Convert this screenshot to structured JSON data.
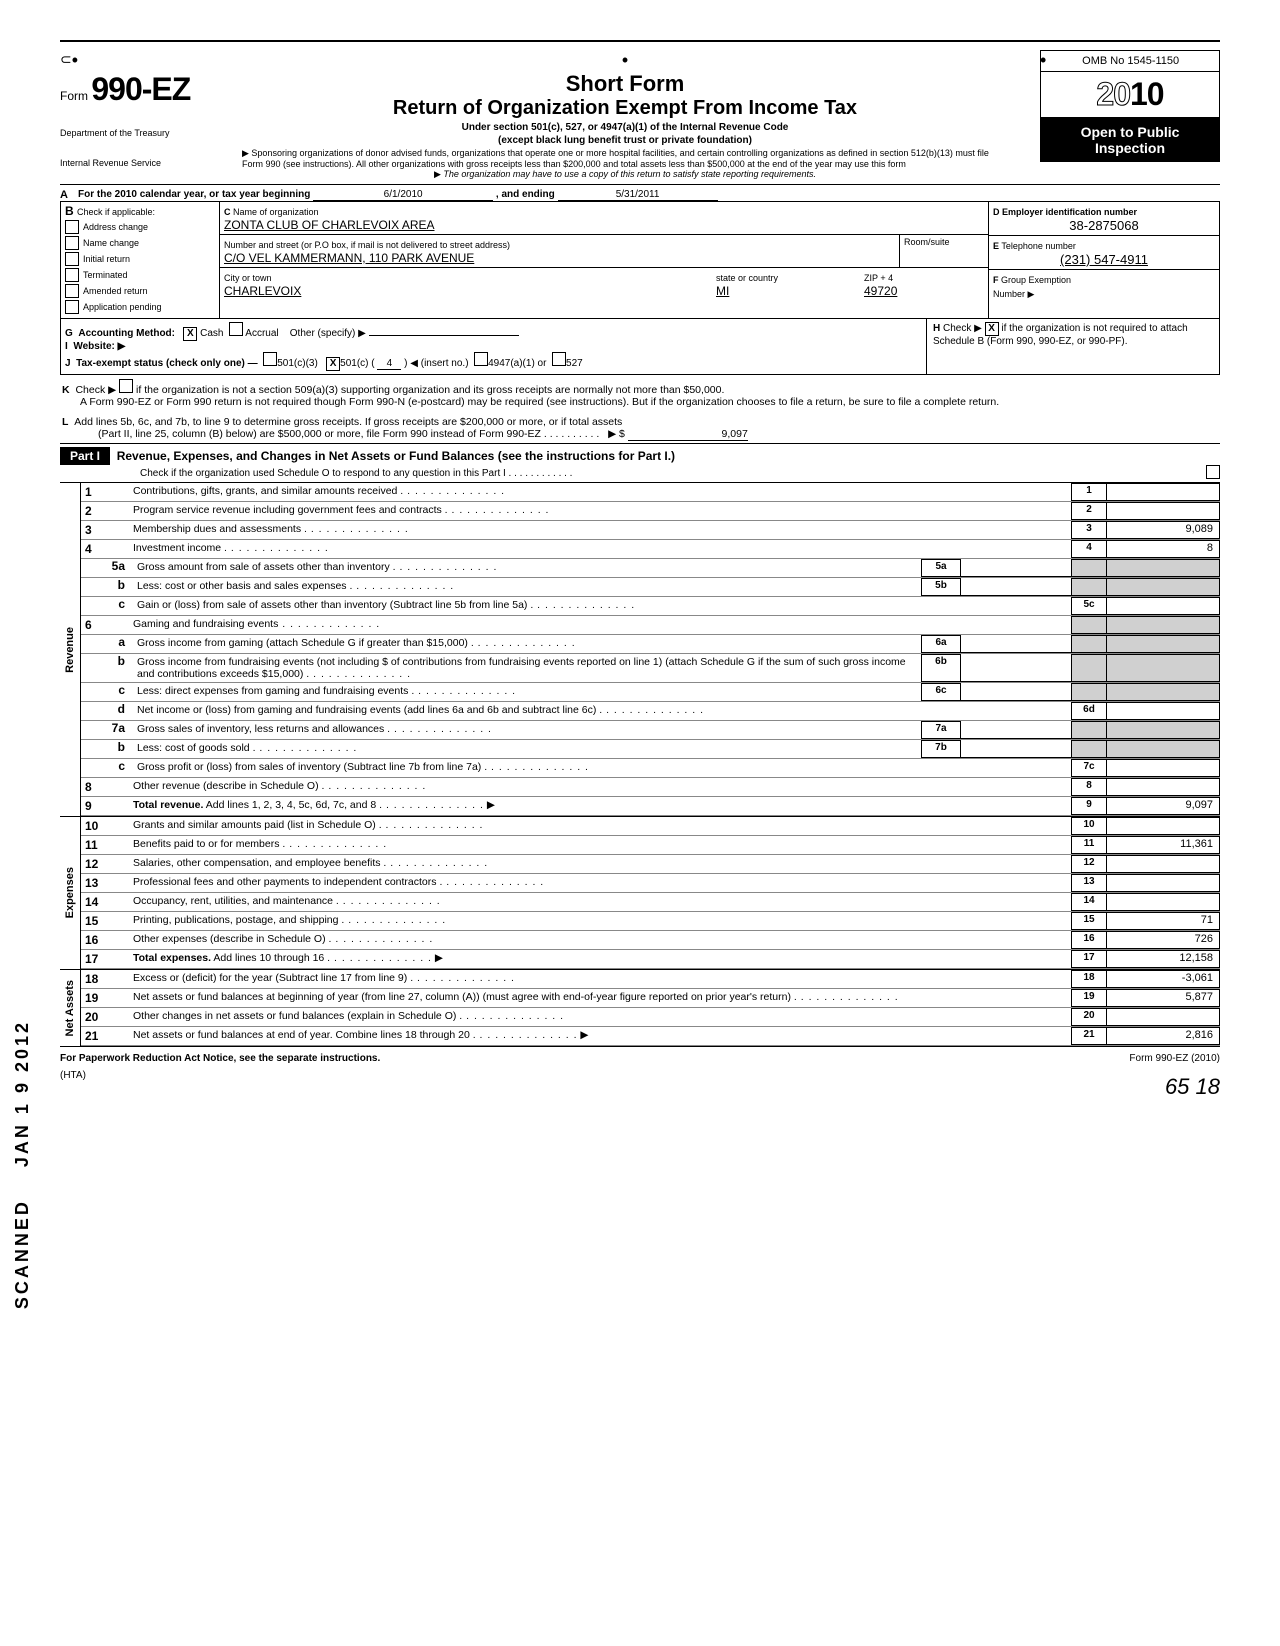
{
  "form": {
    "number": "990-EZ",
    "prefix": "Form",
    "title1": "Short Form",
    "title2": "Return of Organization Exempt From Income Tax",
    "sub1": "Under section 501(c), 527, or 4947(a)(1) of the Internal Revenue Code",
    "sub2": "(except black lung benefit trust or private foundation)",
    "note1": "Sponsoring organizations of donor advised funds, organizations that operate one or more hospital facilities, and certain controlling organizations as defined in section 512(b)(13) must file Form 990 (see instructions). All other organizations with gross receipts less than $200,000 and total assets less than $500,000 at the end of the year may use this form",
    "note2": "The organization may have to use a copy of this return to satisfy state reporting requirements.",
    "omb": "OMB No  1545-1150",
    "year_prefix": "20",
    "year_suffix": "10",
    "open": "Open to Public Inspection",
    "dept": "Department of the Treasury",
    "irs": "Internal Revenue Service"
  },
  "period": {
    "label_a": "For the 2010 calendar year, or tax year beginning",
    "begin": "6/1/2010",
    "mid": ", and ending",
    "end": "5/31/2011"
  },
  "sectionB": {
    "label": "Check if applicable:",
    "items": [
      "Address change",
      "Name change",
      "Initial return",
      "Terminated",
      "Amended return",
      "Application pending"
    ]
  },
  "sectionC": {
    "name_label": "Name of organization",
    "name": "ZONTA CLUB OF CHARLEVOIX AREA",
    "street_label": "Number and street (or P.O  box, if mail is not delivered to street address)",
    "street": "C/O VEL KAMMERMANN,  110 PARK AVENUE",
    "room_label": "Room/suite",
    "city_label": "City or town",
    "city": "CHARLEVOIX",
    "state_label": "state or country",
    "state": "MI",
    "zip_label": "ZIP + 4",
    "zip": "49720"
  },
  "sectionD": {
    "label": "Employer identification number",
    "value": "38-2875068"
  },
  "sectionE": {
    "label": "Telephone number",
    "value": "(231) 547-4911"
  },
  "sectionF": {
    "label": "Group Exemption",
    "label2": "Number ▶"
  },
  "rowG": {
    "label": "Accounting Method:",
    "cash": "Cash",
    "accrual": "Accrual",
    "other": "Other (specify) ▶",
    "cash_checked": "X"
  },
  "rowH": {
    "label": "Check ▶",
    "checked": "X",
    "text": "if the organization is not required to attach Schedule B (Form 990, 990-EZ, or 990-PF)."
  },
  "rowI": {
    "label": "Website: ▶"
  },
  "rowJ": {
    "label": "Tax-exempt status (check only one) —",
    "c3": "501(c)(3)",
    "c": "501(c) (",
    "c_num": "4",
    "c_tail": ") ◀ (insert no.)",
    "c_checked": "X",
    "a1": "4947(a)(1) or",
    "s527": "527"
  },
  "rowK": {
    "label": "Check ▶",
    "text1": "if the organization is not a section 509(a)(3) supporting organization and its gross receipts are normally not more than $50,000.",
    "text2": "A Form 990-EZ or Form 990 return is not required though Form 990-N (e-postcard) may be required (see instructions). But if the organization chooses to file a return, be sure to file a complete return."
  },
  "rowL": {
    "text1": "Add lines 5b, 6c, and 7b, to line 9 to determine gross receipts. If gross receipts are $200,000 or more, or if total assets",
    "text2": "(Part II, line  25, column (B) below) are $500,000 or more, file Form 990 instead of Form 990-EZ  .  .  .  .  .  .  .  .  .  .",
    "arrow": "▶ $",
    "value": "9,097"
  },
  "partI": {
    "header": "Part I",
    "title": "Revenue, Expenses, and Changes in Net Assets or Fund Balances (see the instructions for Part I.)",
    "subtitle": "Check if the organization used Schedule O to respond to any question in this Part I  .  .  .  .  .  .  .  .  .  .  .  ."
  },
  "sideLabels": {
    "revenue": "Revenue",
    "expenses": "Expenses",
    "netassets": "Net Assets"
  },
  "lines": {
    "l1": {
      "n": "1",
      "label": "Contributions, gifts, grants, and similar amounts received .",
      "box": "1",
      "val": ""
    },
    "l2": {
      "n": "2",
      "label": "Program service revenue including government fees and contracts .",
      "box": "2",
      "val": ""
    },
    "l3": {
      "n": "3",
      "label": "Membership dues and assessments .",
      "box": "3",
      "val": "9,089"
    },
    "l4": {
      "n": "4",
      "label": "Investment income .",
      "box": "4",
      "val": "8"
    },
    "l5a": {
      "n": "5a",
      "label": "Gross amount from sale of assets other than inventory .",
      "mid": "5a"
    },
    "l5b": {
      "n": "b",
      "label": "Less: cost or other basis and sales expenses .",
      "mid": "5b"
    },
    "l5c": {
      "n": "c",
      "label": "Gain or (loss) from sale of assets other than inventory (Subtract line 5b from line 5a) .",
      "box": "5c",
      "val": ""
    },
    "l6": {
      "n": "6",
      "label": "Gaming and fundraising events"
    },
    "l6a": {
      "n": "a",
      "label": "Gross income from gaming (attach Schedule G if greater than $15,000) .",
      "mid": "6a"
    },
    "l6b": {
      "n": "b",
      "label": "Gross income from fundraising events (not including $                of contributions from fundraising events reported on line 1) (attach Schedule G if the sum of such gross income and contributions exceeds $15,000) .",
      "mid": "6b"
    },
    "l6c": {
      "n": "c",
      "label": "Less: direct expenses from gaming and fundraising events .",
      "mid": "6c"
    },
    "l6d": {
      "n": "d",
      "label": "Net income or (loss) from gaming and fundraising events (add lines 6a and 6b and subtract line 6c)  .",
      "box": "6d",
      "val": ""
    },
    "l7a": {
      "n": "7a",
      "label": "Gross sales of inventory, less returns and allowances .",
      "mid": "7a"
    },
    "l7b": {
      "n": "b",
      "label": "Less: cost of goods sold .",
      "mid": "7b"
    },
    "l7c": {
      "n": "c",
      "label": "Gross profit or (loss) from sales of inventory (Subtract line 7b from line 7a) .",
      "box": "7c",
      "val": ""
    },
    "l8": {
      "n": "8",
      "label": "Other revenue (describe in Schedule O) .",
      "box": "8",
      "val": ""
    },
    "l9": {
      "n": "9",
      "label": "Total revenue. Add lines 1, 2, 3, 4, 5c, 6d, 7c, and 8 .",
      "box": "9",
      "val": "9,097",
      "bold": true,
      "arrow": true
    },
    "l10": {
      "n": "10",
      "label": "Grants and similar amounts paid (list in Schedule O) .",
      "box": "10",
      "val": ""
    },
    "l11": {
      "n": "11",
      "label": "Benefits paid to or for members .",
      "box": "11",
      "val": "11,361"
    },
    "l12": {
      "n": "12",
      "label": "Salaries, other compensation, and employee benefits .",
      "box": "12",
      "val": ""
    },
    "l13": {
      "n": "13",
      "label": "Professional fees and other payments to independent contractors .",
      "box": "13",
      "val": ""
    },
    "l14": {
      "n": "14",
      "label": "Occupancy, rent, utilities, and maintenance .",
      "box": "14",
      "val": ""
    },
    "l15": {
      "n": "15",
      "label": "Printing, publications, postage, and shipping .",
      "box": "15",
      "val": "71"
    },
    "l16": {
      "n": "16",
      "label": "Other expenses (describe in Schedule O) .",
      "box": "16",
      "val": "726"
    },
    "l17": {
      "n": "17",
      "label": "Total expenses. Add lines 10 through 16 .",
      "box": "17",
      "val": "12,158",
      "bold": true,
      "arrow": true
    },
    "l18": {
      "n": "18",
      "label": "Excess or (deficit) for the year (Subtract line 17 from line 9) .",
      "box": "18",
      "val": "-3,061"
    },
    "l19": {
      "n": "19",
      "label": "Net assets or fund balances at beginning of year (from line 27, column (A)) (must agree with end-of-year figure reported on prior year's return) .",
      "box": "19",
      "val": "5,877"
    },
    "l20": {
      "n": "20",
      "label": "Other changes in net assets or fund balances (explain in Schedule O) .",
      "box": "20",
      "val": ""
    },
    "l21": {
      "n": "21",
      "label": "Net assets or fund balances at end of year. Combine lines 18 through 20  .",
      "box": "21",
      "val": "2,816",
      "arrow": true
    }
  },
  "footer": {
    "left": "For Paperwork Reduction Act Notice, see the separate instructions.",
    "hta": "(HTA)",
    "right": "Form 990-EZ (2010)",
    "page": "65   18"
  },
  "stamps": {
    "date": "JAN 1 9 2012",
    "scanned": "SCANNED"
  }
}
